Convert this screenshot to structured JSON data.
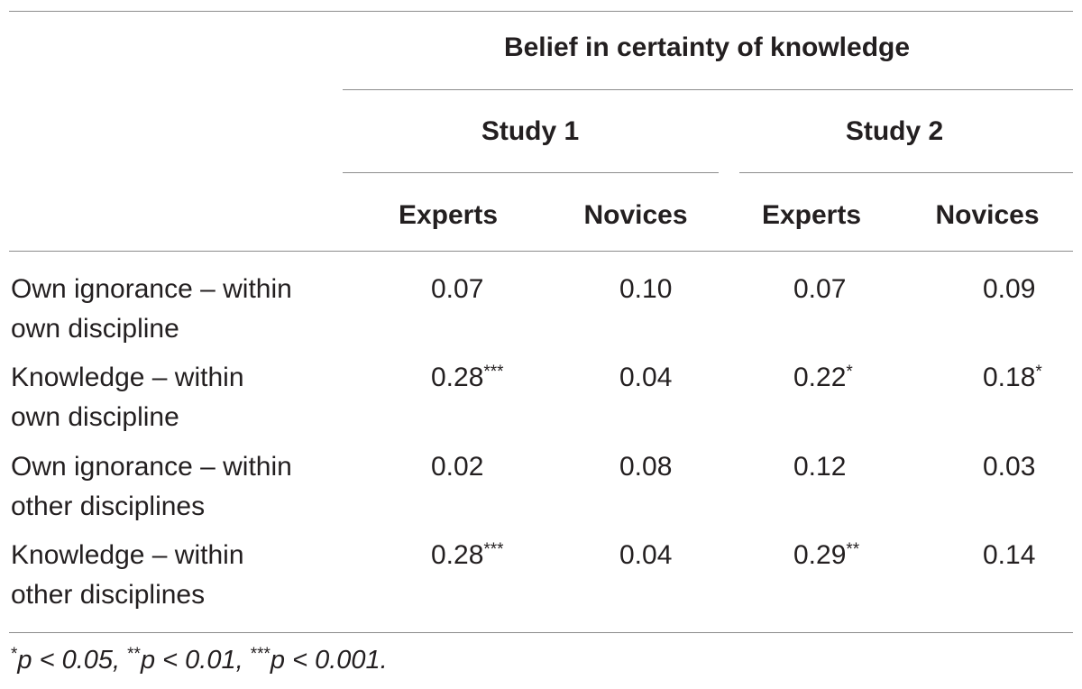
{
  "table": {
    "group_header": "Belief in certainty of knowledge",
    "studies": [
      {
        "label": "Study 1",
        "columns": [
          "Experts",
          "Novices"
        ]
      },
      {
        "label": "Study 2",
        "columns": [
          "Experts",
          "Novices"
        ]
      }
    ],
    "rows": [
      {
        "label_line1": "Own ignorance – within",
        "label_line2": "own discipline",
        "cells": [
          {
            "value": "0.07",
            "sig": ""
          },
          {
            "value": "0.10",
            "sig": ""
          },
          {
            "value": "0.07",
            "sig": ""
          },
          {
            "value": "0.09",
            "sig": ""
          }
        ]
      },
      {
        "label_line1": "Knowledge – within",
        "label_line2": "own discipline",
        "cells": [
          {
            "value": "0.28",
            "sig": "***"
          },
          {
            "value": "0.04",
            "sig": ""
          },
          {
            "value": "0.22",
            "sig": "*"
          },
          {
            "value": "0.18",
            "sig": "*"
          }
        ]
      },
      {
        "label_line1": "Own ignorance – within",
        "label_line2": "other disciplines",
        "cells": [
          {
            "value": "0.02",
            "sig": ""
          },
          {
            "value": "0.08",
            "sig": ""
          },
          {
            "value": "0.12",
            "sig": ""
          },
          {
            "value": "0.03",
            "sig": ""
          }
        ]
      },
      {
        "label_line1": "Knowledge – within",
        "label_line2": "other disciplines",
        "cells": [
          {
            "value": "0.28",
            "sig": "***"
          },
          {
            "value": "0.04",
            "sig": ""
          },
          {
            "value": "0.29",
            "sig": "**"
          },
          {
            "value": "0.14",
            "sig": ""
          }
        ]
      }
    ],
    "footnote": [
      {
        "stars": "*",
        "text": "p < 0.05, "
      },
      {
        "stars": "**",
        "text": "p < 0.01, "
      },
      {
        "stars": "***",
        "text": "p < 0.001."
      }
    ]
  }
}
